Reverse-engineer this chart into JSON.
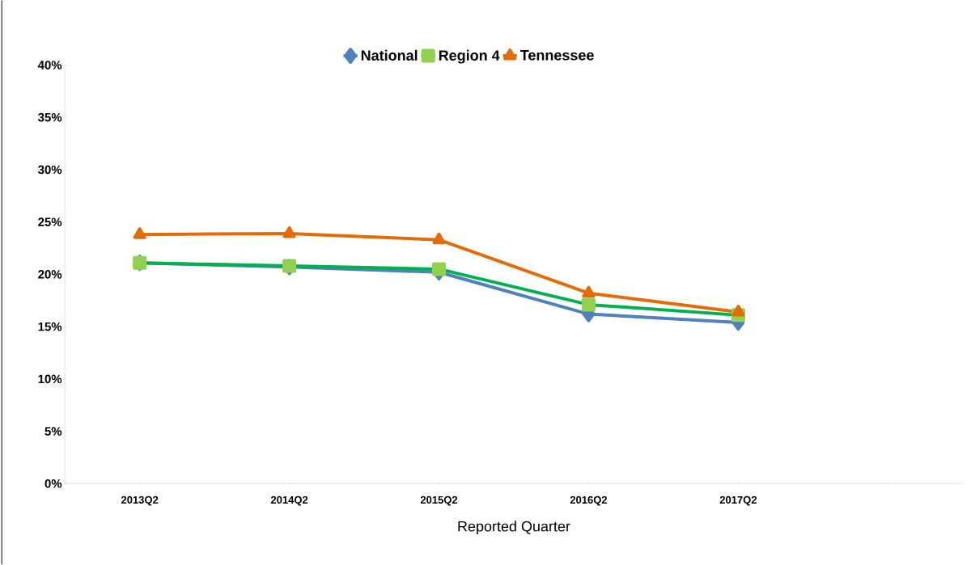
{
  "chart_data": {
    "type": "line",
    "xlabel": "Reported Quarter",
    "categories": [
      "2013Q2",
      "2014Q2",
      "2015Q2",
      "2016Q2",
      "2017Q2",
      null
    ],
    "series": [
      {
        "name": "National",
        "color": "#4f81bd",
        "marker": "diamond",
        "values": [
          21.1,
          20.7,
          20.2,
          16.2,
          15.4,
          null
        ]
      },
      {
        "name": "Region 4",
        "color": "#00b050",
        "marker": "square",
        "values": [
          21.1,
          20.8,
          20.5,
          17.1,
          16.1,
          null
        ]
      },
      {
        "name": "Tennessee",
        "color": "#e36c09",
        "marker": "triangle",
        "values": [
          23.8,
          23.9,
          23.3,
          18.2,
          16.4,
          null
        ]
      }
    ],
    "ylim": [
      0,
      40
    ],
    "yticks": [
      {
        "value": 0,
        "label": "0%"
      },
      {
        "value": 5,
        "label": "5%"
      },
      {
        "value": 10,
        "label": "10%"
      },
      {
        "value": 15,
        "label": "15%"
      },
      {
        "value": 20,
        "label": "20%"
      },
      {
        "value": 25,
        "label": "25%"
      },
      {
        "value": 30,
        "label": "30%"
      },
      {
        "value": 35,
        "label": "35%"
      },
      {
        "value": 40,
        "label": "40%"
      }
    ],
    "grid": false,
    "legend": "top",
    "line_style": "solid"
  }
}
